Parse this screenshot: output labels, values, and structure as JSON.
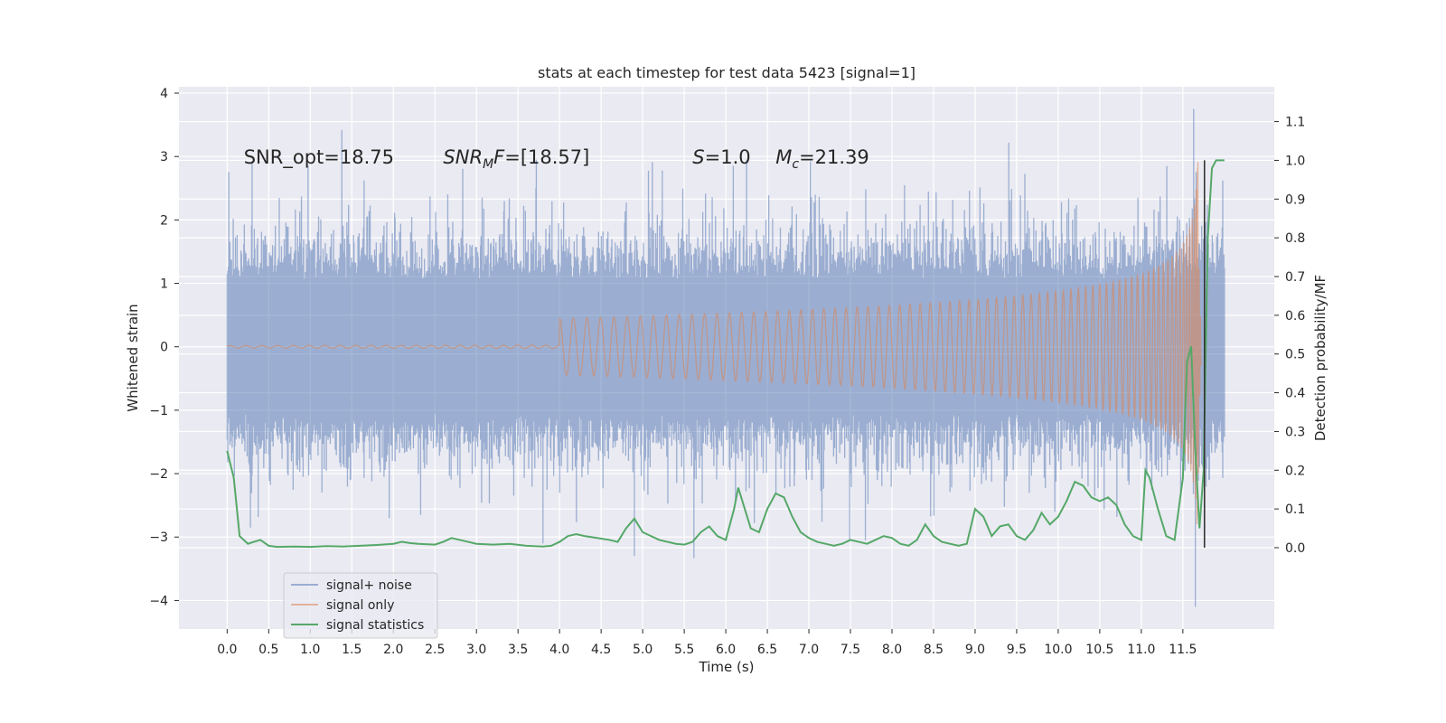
{
  "chart_data": {
    "type": "line",
    "title": "stats at each timestep for test data 5423 [signal=1]",
    "xlabel": "Time (s)",
    "ylabel": "Whitened strain",
    "y2label": "Detection probability/MF",
    "xlim": [
      -0.58,
      12.6
    ],
    "ylim": [
      -4.45,
      4.1
    ],
    "y2lim": [
      -0.21,
      1.19
    ],
    "xticks": [
      0.0,
      0.5,
      1.0,
      1.5,
      2.0,
      2.5,
      3.0,
      3.5,
      4.0,
      4.5,
      5.0,
      5.5,
      6.0,
      6.5,
      7.0,
      7.5,
      8.0,
      8.5,
      9.0,
      9.5,
      10.0,
      10.5,
      11.0,
      11.5
    ],
    "xtick_labels": [
      "0.0",
      "0.5",
      "1.0",
      "1.5",
      "2.0",
      "2.5",
      "3.0",
      "3.5",
      "4.0",
      "4.5",
      "5.0",
      "5.5",
      "6.0",
      "6.5",
      "7.0",
      "7.5",
      "8.0",
      "8.5",
      "9.0",
      "9.5",
      "10.0",
      "10.5",
      "11.0",
      "11.5"
    ],
    "yticks": [
      -4,
      -3,
      -2,
      -1,
      0,
      1,
      2,
      3,
      4
    ],
    "ytick_labels": [
      "−4",
      "−3",
      "−2",
      "−1",
      "0",
      "1",
      "2",
      "3",
      "4"
    ],
    "y2ticks": [
      0.0,
      0.1,
      0.2,
      0.3,
      0.4,
      0.5,
      0.6,
      0.7,
      0.8,
      0.9,
      1.0,
      1.1
    ],
    "y2tick_labels": [
      "0.0",
      "0.1",
      "0.2",
      "0.3",
      "0.4",
      "0.5",
      "0.6",
      "0.7",
      "0.8",
      "0.9",
      "1.0",
      "1.1"
    ],
    "grid": true,
    "legend_position": "lower-left",
    "annotations": [
      {
        "text": "SNR_opt=18.75",
        "x": 0.2,
        "y": 3.0
      },
      {
        "text": "SNR_MF=[18.57]",
        "x": 2.6,
        "y": 3.0
      },
      {
        "text": "S=1.0",
        "x": 5.6,
        "y": 3.0
      },
      {
        "text": "M_c=21.39",
        "x": 6.6,
        "y": 3.0
      }
    ],
    "series": [
      {
        "name": "signal+ noise",
        "color": "#4c72b0",
        "axis": "left",
        "style": "dense-noise",
        "x_range": [
          0.0,
          12.0
        ],
        "envelope_upper": 1.5,
        "envelope_lower": -1.5,
        "max": 3.75,
        "min": -4.1
      },
      {
        "name": "signal only",
        "color": "#dd8452",
        "axis": "left",
        "style": "chirp",
        "x_range": [
          0.0,
          11.72
        ],
        "peak_time": 11.68,
        "peak_amplitude": 3.3
      },
      {
        "name": "signal statistics",
        "color": "#55a868",
        "axis": "right",
        "x": [
          0.0,
          0.08,
          0.15,
          0.25,
          0.32,
          0.4,
          0.5,
          0.6,
          0.8,
          1.0,
          1.2,
          1.4,
          1.6,
          1.8,
          2.0,
          2.1,
          2.2,
          2.3,
          2.5,
          2.6,
          2.7,
          2.8,
          2.9,
          3.0,
          3.2,
          3.4,
          3.6,
          3.8,
          3.9,
          4.0,
          4.1,
          4.2,
          4.3,
          4.45,
          4.6,
          4.7,
          4.8,
          4.9,
          5.0,
          5.2,
          5.4,
          5.5,
          5.6,
          5.7,
          5.8,
          5.9,
          6.0,
          6.1,
          6.15,
          6.2,
          6.3,
          6.4,
          6.5,
          6.6,
          6.7,
          6.8,
          6.9,
          7.0,
          7.1,
          7.2,
          7.3,
          7.4,
          7.5,
          7.6,
          7.7,
          7.8,
          7.9,
          8.0,
          8.1,
          8.2,
          8.3,
          8.4,
          8.5,
          8.6,
          8.8,
          8.9,
          9.0,
          9.1,
          9.2,
          9.3,
          9.4,
          9.5,
          9.6,
          9.7,
          9.8,
          9.9,
          10.0,
          10.1,
          10.2,
          10.3,
          10.4,
          10.5,
          10.6,
          10.7,
          10.8,
          10.9,
          11.0,
          11.05,
          11.1,
          11.2,
          11.3,
          11.4,
          11.5,
          11.55,
          11.6,
          11.65,
          11.7,
          11.75,
          11.8,
          11.85,
          11.9,
          12.0
        ],
        "values": [
          0.25,
          0.18,
          0.03,
          0.01,
          0.015,
          0.02,
          0.005,
          0.002,
          0.003,
          0.002,
          0.004,
          0.003,
          0.005,
          0.007,
          0.01,
          0.015,
          0.012,
          0.01,
          0.008,
          0.015,
          0.025,
          0.02,
          0.015,
          0.01,
          0.008,
          0.01,
          0.005,
          0.003,
          0.005,
          0.015,
          0.03,
          0.035,
          0.03,
          0.025,
          0.02,
          0.015,
          0.05,
          0.075,
          0.04,
          0.02,
          0.01,
          0.008,
          0.015,
          0.04,
          0.055,
          0.03,
          0.02,
          0.1,
          0.155,
          0.12,
          0.05,
          0.04,
          0.1,
          0.14,
          0.13,
          0.08,
          0.04,
          0.025,
          0.015,
          0.01,
          0.005,
          0.01,
          0.02,
          0.015,
          0.01,
          0.02,
          0.03,
          0.025,
          0.01,
          0.005,
          0.02,
          0.06,
          0.03,
          0.015,
          0.005,
          0.01,
          0.1,
          0.08,
          0.03,
          0.055,
          0.06,
          0.03,
          0.02,
          0.045,
          0.09,
          0.06,
          0.08,
          0.12,
          0.17,
          0.16,
          0.13,
          0.12,
          0.13,
          0.11,
          0.06,
          0.03,
          0.02,
          0.2,
          0.18,
          0.1,
          0.03,
          0.02,
          0.18,
          0.48,
          0.52,
          0.25,
          0.05,
          0.2,
          0.8,
          0.98,
          1.0,
          1.0
        ]
      }
    ]
  }
}
